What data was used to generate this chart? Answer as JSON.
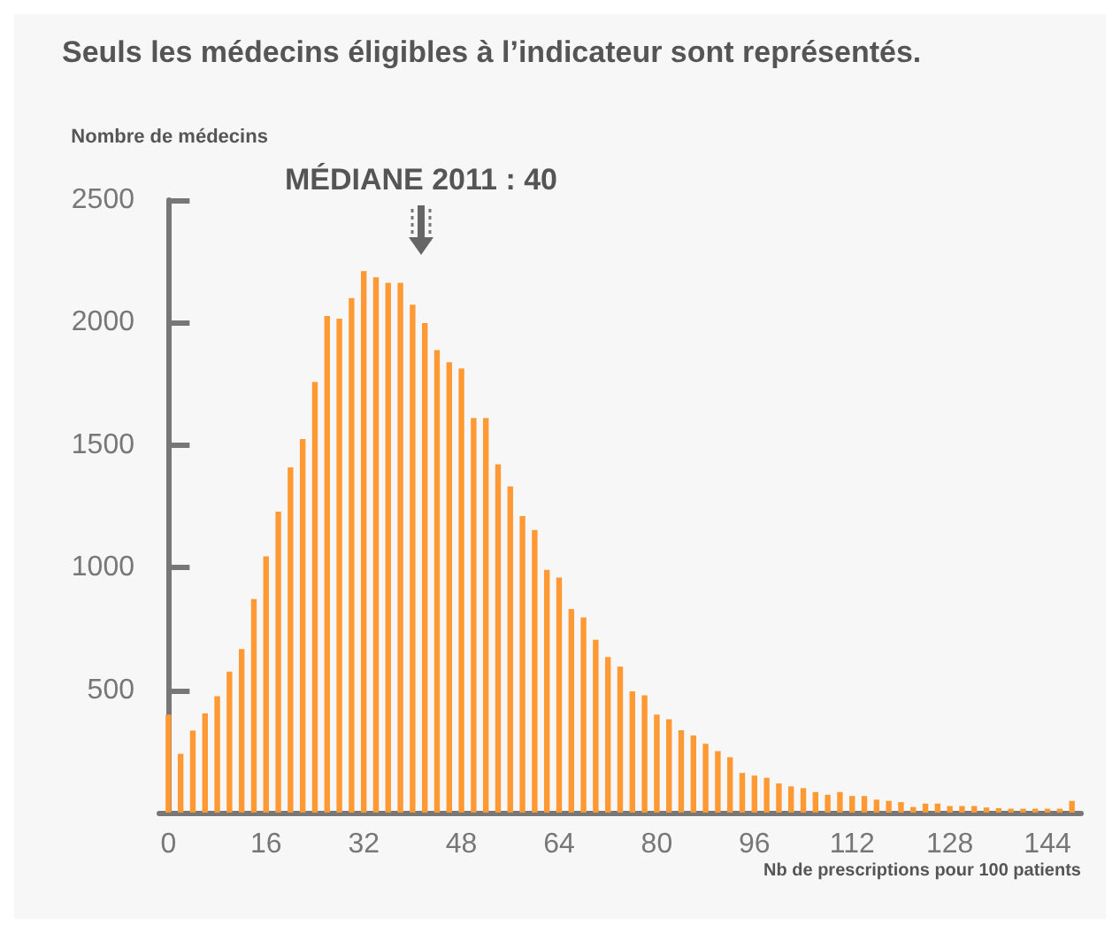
{
  "chart_data": {
    "type": "bar",
    "title": "Seuls les médecins éligibles à l’indicateur sont représentés.",
    "ylabel": "Nombre de médecins",
    "xlabel": "Nb de prescriptions pour 100 patients",
    "x": [
      0,
      2,
      4,
      6,
      8,
      10,
      12,
      14,
      16,
      18,
      20,
      22,
      24,
      26,
      28,
      30,
      32,
      34,
      36,
      38,
      40,
      42,
      44,
      46,
      48,
      50,
      52,
      54,
      56,
      58,
      60,
      62,
      64,
      66,
      68,
      70,
      72,
      74,
      76,
      78,
      80,
      82,
      84,
      86,
      88,
      90,
      92,
      94,
      96,
      98,
      100,
      102,
      104,
      106,
      108,
      110,
      112,
      114,
      116,
      118,
      120,
      122,
      124,
      126,
      128,
      130,
      132,
      134,
      136,
      138,
      140,
      142,
      144,
      146,
      148
    ],
    "values": [
      400,
      240,
      335,
      405,
      475,
      575,
      667,
      872,
      1046,
      1228,
      1409,
      1525,
      1758,
      2027,
      2016,
      2100,
      2210,
      2185,
      2162,
      2162,
      2073,
      1998,
      1888,
      1838,
      1813,
      1610,
      1610,
      1422,
      1331,
      1210,
      1153,
      991,
      959,
      831,
      797,
      705,
      635,
      596,
      495,
      479,
      400,
      381,
      336,
      315,
      281,
      251,
      226,
      162,
      151,
      142,
      119,
      107,
      100,
      84,
      73,
      84,
      68,
      68,
      53,
      48,
      43,
      23,
      37,
      37,
      27,
      27,
      27,
      21,
      18,
      16,
      16,
      16,
      16,
      16,
      48
    ],
    "color": "#ff9933",
    "xlim": [
      -1.5,
      149.5
    ],
    "xticks": [
      0,
      16,
      32,
      48,
      64,
      80,
      96,
      112,
      128,
      144
    ],
    "ylim": [
      0,
      2500
    ],
    "yticks": [
      500,
      1000,
      1500,
      2000,
      2500
    ],
    "grid": false,
    "annotations": [
      "MÉDIANE 2011 : 40"
    ]
  }
}
